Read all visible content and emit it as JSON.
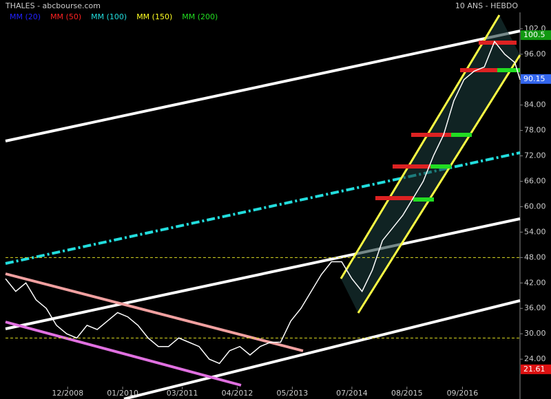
{
  "chart_data": {
    "type": "line",
    "title": "THALES - abcbourse.com",
    "subtitle": "10 ANS - HEBDO",
    "moving_averages": [
      {
        "name": "MM (20)",
        "color": "#2222ff"
      },
      {
        "name": "MM (50)",
        "color": "#ff2222"
      },
      {
        "name": "MM (100)",
        "color": "#22dddd"
      },
      {
        "name": "MM (150)",
        "color": "#ffff22"
      },
      {
        "name": "MM (200)",
        "color": "#22dd22"
      }
    ],
    "color": "#ffffff",
    "x": [
      2007.7,
      2007.9,
      2008.1,
      2008.3,
      2008.5,
      2008.7,
      2008.9,
      2009.1,
      2009.3,
      2009.5,
      2009.7,
      2009.9,
      2010.1,
      2010.3,
      2010.5,
      2010.7,
      2010.9,
      2011.1,
      2011.3,
      2011.5,
      2011.7,
      2011.9,
      2012.1,
      2012.3,
      2012.5,
      2012.7,
      2012.9,
      2013.1,
      2013.3,
      2013.5,
      2013.7,
      2013.9,
      2014.1,
      2014.3,
      2014.5,
      2014.7,
      2014.9,
      2015.1,
      2015.3,
      2015.5,
      2015.7,
      2015.9,
      2016.1,
      2016.3,
      2016.5,
      2016.7,
      2016.9,
      2017.1,
      2017.3,
      2017.5,
      2017.7,
      2017.8
    ],
    "values": [
      43,
      40,
      42,
      38,
      36,
      32,
      30,
      29,
      32,
      31,
      33,
      35,
      34,
      32,
      29,
      27,
      27,
      29,
      28,
      27,
      24,
      23,
      26,
      27,
      25,
      27,
      28,
      28,
      33,
      36,
      40,
      44,
      47,
      47,
      43,
      40,
      45,
      52,
      55,
      58,
      62,
      66,
      72,
      77,
      85,
      90,
      92,
      93,
      99,
      96,
      94,
      90
    ],
    "hlines": [
      48,
      29
    ],
    "price_tags": [
      {
        "value": 100.5,
        "color": "#119911"
      },
      {
        "value": 90.15,
        "color": "#3366ee"
      },
      {
        "value": 21.61,
        "color": "#dd1111"
      }
    ],
    "xlim": [
      2007.7,
      2017.8
    ],
    "xticks": [
      {
        "value": 2008.92,
        "label": "12/2008"
      },
      {
        "value": 2010.0,
        "label": "01/2010"
      },
      {
        "value": 2011.17,
        "label": "03/2011"
      },
      {
        "value": 2012.25,
        "label": "04/2012"
      },
      {
        "value": 2013.33,
        "label": "05/2013"
      },
      {
        "value": 2014.5,
        "label": "07/2014"
      },
      {
        "value": 2015.58,
        "label": "08/2015"
      },
      {
        "value": 2016.67,
        "label": "09/2016"
      }
    ],
    "ylim": [
      14.6,
      108.8
    ],
    "yticks": [
      {
        "value": 24,
        "label": "24.00"
      },
      {
        "value": 30,
        "label": "30.00"
      },
      {
        "value": 36,
        "label": "36.00"
      },
      {
        "value": 42,
        "label": "42.00"
      },
      {
        "value": 48,
        "label": "48.00"
      },
      {
        "value": 54,
        "label": "54.00"
      },
      {
        "value": 60,
        "label": "60.00"
      },
      {
        "value": 66,
        "label": "66.00"
      },
      {
        "value": 72,
        "label": "72.00"
      },
      {
        "value": 78,
        "label": "78.00"
      },
      {
        "value": 84,
        "label": "84.00"
      },
      {
        "value": 90,
        "label": "90.00"
      },
      {
        "value": 96,
        "label": "96.00"
      },
      {
        "value": 102,
        "label": "102.0"
      }
    ]
  }
}
